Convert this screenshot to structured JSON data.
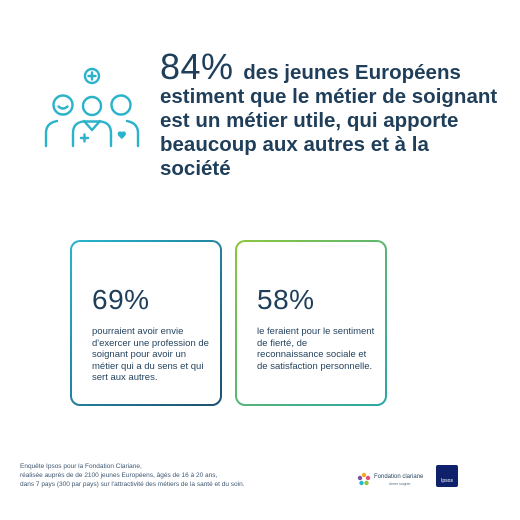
{
  "headline": {
    "stat": "84%",
    "text": "des jeunes Européens estiment que le métier de soignant est un métier utile, qui apporte beaucoup aux autres et à la société"
  },
  "cards": [
    {
      "stat": "69%",
      "text": "pourraient avoir envie d'exercer une profession de soignant pour avoir un métier qui a du sens et qui sert aux autres."
    },
    {
      "stat": "58%",
      "text": "le feraient pour le sentiment de fierté, de reconnaissance sociale et de satisfaction personnelle."
    }
  ],
  "footer": {
    "line1": "Enquête Ipsos pour la Fondation Clariane,",
    "line2": "réalisée auprès de de 2100 jeunes Européens, âgés de 16 à 20 ans,",
    "line3": "dans 7 pays (300 par pays) sur l'attractivité des métiers de la santé et du soin."
  },
  "logos": {
    "clariane_name": "Fondation clariane",
    "clariane_tagline": "Aimer soigner",
    "ipsos": "Ipsos"
  },
  "icon": "healthcare-team-icon",
  "colors": {
    "navy": "#1f3e5a",
    "teal": "#28b6ce",
    "green": "#8cc63f",
    "ipsos_blue": "#10216b"
  }
}
